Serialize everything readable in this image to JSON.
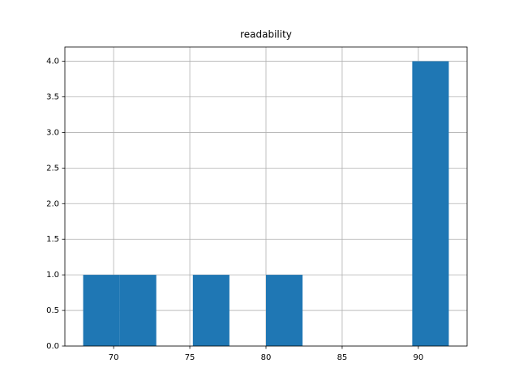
{
  "chart_data": {
    "type": "histogram",
    "title": "readability",
    "bins": [
      68,
      70.4,
      72.8,
      75.2,
      77.6,
      80,
      82.4,
      84.8,
      87.2,
      89.6,
      92
    ],
    "values": [
      1,
      1,
      0,
      1,
      0,
      1,
      0,
      0,
      0,
      4
    ],
    "color": "#1f77b4",
    "xlim": [
      66.8,
      93.2
    ],
    "xticks": [
      70,
      75,
      80,
      85,
      90
    ],
    "ylim": [
      0,
      4.2
    ],
    "yticks": [
      {
        "value": 0,
        "label": "0.0"
      },
      {
        "value": 0.5,
        "label": "0.5"
      },
      {
        "value": 1,
        "label": "1.0"
      },
      {
        "value": 1.5,
        "label": "1.5"
      },
      {
        "value": 2,
        "label": "2.0"
      },
      {
        "value": 2.5,
        "label": "2.5"
      },
      {
        "value": 3,
        "label": "3.0"
      },
      {
        "value": 3.5,
        "label": "3.5"
      },
      {
        "value": 4,
        "label": "4.0"
      }
    ],
    "grid": true
  }
}
